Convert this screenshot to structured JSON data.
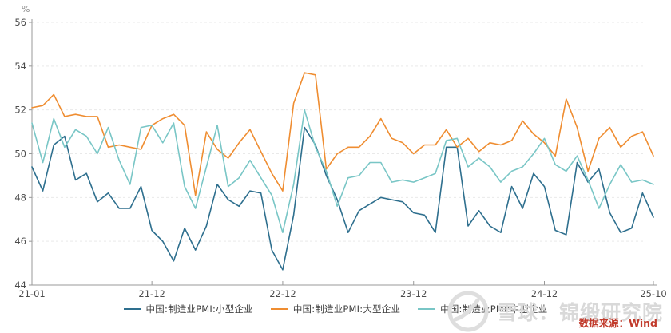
{
  "unit_label": "%",
  "watermark": {
    "text": "雪球：锦缎研究院"
  },
  "source": {
    "text": "数据来源：Wind",
    "color": "#c13a2b"
  },
  "chart_data": {
    "type": "line",
    "title": "",
    "xlabel": "",
    "ylabel": "%",
    "ylim": [
      44,
      56
    ],
    "y_ticks": [
      44,
      46,
      48,
      50,
      52,
      54,
      56
    ],
    "grid": "horizontal-dashed",
    "legend_position": "bottom-center",
    "x_labels": [
      "21-01",
      "21-02",
      "21-03",
      "21-04",
      "21-05",
      "21-06",
      "21-07",
      "21-08",
      "21-09",
      "21-10",
      "21-11",
      "21-12",
      "22-01",
      "22-02",
      "22-03",
      "22-04",
      "22-05",
      "22-06",
      "22-07",
      "22-08",
      "22-09",
      "22-10",
      "22-11",
      "22-12",
      "23-01",
      "23-02",
      "23-03",
      "23-04",
      "23-05",
      "23-06",
      "23-07",
      "23-08",
      "23-09",
      "23-10",
      "23-11",
      "23-12",
      "24-01",
      "24-02",
      "24-03",
      "24-04",
      "24-05",
      "24-06",
      "24-07",
      "24-08",
      "24-09",
      "24-10",
      "24-11",
      "24-12",
      "25-01",
      "25-02",
      "25-03",
      "25-04",
      "25-05",
      "25-06",
      "25-07",
      "25-08",
      "25-09",
      "25-10"
    ],
    "x_tick_labels": [
      "21-01",
      "21-12",
      "22-12",
      "23-12",
      "24-12",
      "25-10"
    ],
    "series": [
      {
        "name": "中国:制造业PMI:小型企业",
        "color": "#2e6f8e",
        "values": [
          49.4,
          48.3,
          50.4,
          50.8,
          48.8,
          49.1,
          47.8,
          48.2,
          47.5,
          47.5,
          48.5,
          46.5,
          46.0,
          45.1,
          46.6,
          45.6,
          46.7,
          48.6,
          47.9,
          47.6,
          48.3,
          48.2,
          45.6,
          44.7,
          47.2,
          51.2,
          50.4,
          49.0,
          47.9,
          46.4,
          47.4,
          47.7,
          48.0,
          47.9,
          47.8,
          47.3,
          47.2,
          46.4,
          50.3,
          50.3,
          46.7,
          47.4,
          46.7,
          46.4,
          48.5,
          47.5,
          49.1,
          48.5,
          46.5,
          46.3,
          49.6,
          48.7,
          49.3,
          47.3,
          46.4,
          46.6,
          48.2,
          47.1
        ]
      },
      {
        "name": "中国:制造业PMI:大型企业",
        "color": "#ef8d31",
        "values": [
          52.1,
          52.2,
          52.7,
          51.7,
          51.8,
          51.7,
          51.7,
          50.3,
          50.4,
          50.3,
          50.2,
          51.3,
          51.6,
          51.8,
          51.3,
          48.1,
          51.0,
          50.2,
          49.8,
          50.5,
          51.1,
          50.1,
          49.1,
          48.3,
          52.3,
          53.7,
          53.6,
          49.3,
          50.0,
          50.3,
          50.3,
          50.8,
          51.6,
          50.7,
          50.5,
          50.0,
          50.4,
          50.4,
          51.1,
          50.3,
          50.7,
          50.1,
          50.5,
          50.4,
          50.6,
          51.5,
          50.9,
          50.5,
          49.9,
          52.5,
          51.2,
          49.2,
          50.7,
          51.2,
          50.3,
          50.8,
          51.0,
          49.9
        ]
      },
      {
        "name": "中国:制造业PMI:中型企业",
        "color": "#79c6c6",
        "values": [
          51.4,
          49.6,
          51.6,
          50.3,
          51.1,
          50.8,
          50.0,
          51.2,
          49.7,
          48.6,
          51.2,
          51.3,
          50.5,
          51.4,
          48.5,
          47.5,
          49.4,
          51.3,
          48.5,
          48.9,
          49.7,
          48.9,
          48.1,
          46.4,
          48.6,
          52.0,
          50.3,
          49.2,
          47.6,
          48.9,
          49.0,
          49.6,
          49.6,
          48.7,
          48.8,
          48.7,
          48.9,
          49.1,
          50.6,
          50.7,
          49.4,
          49.8,
          49.4,
          48.7,
          49.2,
          49.4,
          50.0,
          50.7,
          49.5,
          49.2,
          49.9,
          48.8,
          47.5,
          48.6,
          49.5,
          48.7,
          48.8,
          48.6
        ]
      }
    ],
    "style": {
      "axis_color": "#999999",
      "grid_color": "#e9e9e9",
      "tick_text_color": "#4d4d4d",
      "watermark_color": "#d9d9d9"
    }
  }
}
